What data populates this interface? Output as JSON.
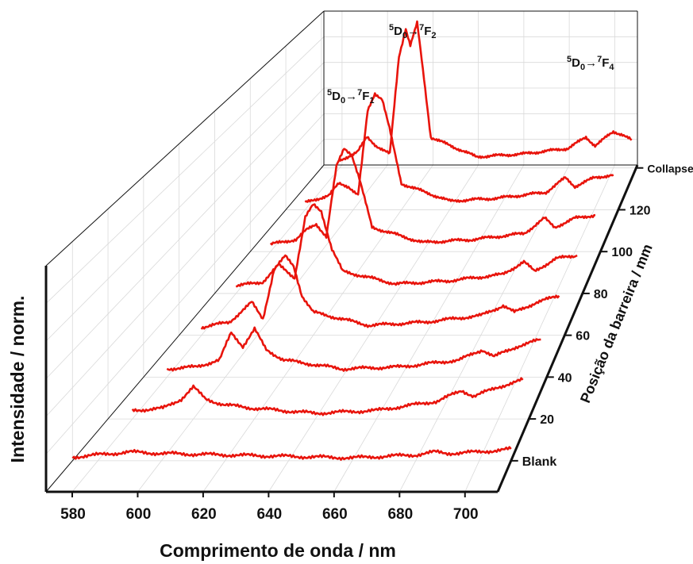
{
  "chart_data": {
    "type": "line",
    "subtype": "3d-waterfall",
    "xlabel": "Comprimento de onda / nm",
    "ylabel": "Intensidade / norm.",
    "zlabel": "Posição da barreira / mm",
    "xlim": [
      572,
      710
    ],
    "x_ticks": [
      "580",
      "600",
      "620",
      "640",
      "660",
      "680",
      "700"
    ],
    "z_ticks": [
      "Blank",
      "20",
      "40",
      "60",
      "80",
      "100",
      "120",
      "Collapse"
    ],
    "grid": true,
    "series_color": "#e8140c",
    "annotations": [
      {
        "sup1": "5",
        "main1": "D",
        "sub1": "0",
        "arrow": "→",
        "sup2": "7",
        "main2": "F",
        "sub2": "1",
        "x": 592,
        "series": 7
      },
      {
        "sup1": "5",
        "main1": "D",
        "sub1": "0",
        "arrow": "→",
        "sup2": "7",
        "main2": "F",
        "sub2": "2",
        "x": 614,
        "series": 7
      },
      {
        "sup1": "5",
        "main1": "D",
        "sub1": "0",
        "arrow": "→",
        "sup2": "7",
        "main2": "F",
        "sub2": "4",
        "x": 700,
        "series": 7
      }
    ],
    "series": [
      {
        "position": "Blank",
        "points": [
          [
            572,
            0.05
          ],
          [
            590,
            0.12
          ],
          [
            600,
            0.1
          ],
          [
            620,
            0.08
          ],
          [
            640,
            0.06
          ],
          [
            660,
            0.04
          ],
          [
            680,
            0.08
          ],
          [
            686,
            0.12
          ],
          [
            690,
            0.1
          ],
          [
            700,
            0.12
          ],
          [
            710,
            0.16
          ]
        ]
      },
      {
        "position": "20",
        "points": [
          [
            580,
            0.12
          ],
          [
            590,
            0.15
          ],
          [
            596,
            0.28
          ],
          [
            600,
            0.45
          ],
          [
            604,
            0.28
          ],
          [
            610,
            0.2
          ],
          [
            620,
            0.15
          ],
          [
            640,
            0.08
          ],
          [
            660,
            0.12
          ],
          [
            680,
            0.25
          ],
          [
            688,
            0.4
          ],
          [
            692,
            0.32
          ],
          [
            700,
            0.45
          ],
          [
            708,
            0.55
          ]
        ]
      },
      {
        "position": "40",
        "points": [
          [
            580,
            0.12
          ],
          [
            590,
            0.15
          ],
          [
            598,
            0.25
          ],
          [
            602,
            0.65
          ],
          [
            606,
            0.45
          ],
          [
            610,
            0.7
          ],
          [
            614,
            0.4
          ],
          [
            620,
            0.25
          ],
          [
            640,
            0.12
          ],
          [
            660,
            0.15
          ],
          [
            680,
            0.25
          ],
          [
            688,
            0.4
          ],
          [
            692,
            0.3
          ],
          [
            700,
            0.45
          ],
          [
            708,
            0.55
          ]
        ]
      },
      {
        "position": "60",
        "points": [
          [
            580,
            0.12
          ],
          [
            590,
            0.2
          ],
          [
            594,
            0.35
          ],
          [
            598,
            0.5
          ],
          [
            602,
            0.25
          ],
          [
            606,
            1.0
          ],
          [
            610,
            1.2
          ],
          [
            613,
            1.05
          ],
          [
            616,
            0.6
          ],
          [
            620,
            0.35
          ],
          [
            640,
            0.15
          ],
          [
            660,
            0.2
          ],
          [
            680,
            0.3
          ],
          [
            688,
            0.45
          ],
          [
            692,
            0.35
          ],
          [
            700,
            0.5
          ],
          [
            708,
            0.6
          ]
        ]
      },
      {
        "position": "80",
        "points": [
          [
            580,
            0.12
          ],
          [
            590,
            0.18
          ],
          [
            596,
            0.45
          ],
          [
            602,
            0.25
          ],
          [
            606,
            1.2
          ],
          [
            609,
            1.4
          ],
          [
            612,
            1.3
          ],
          [
            616,
            0.7
          ],
          [
            620,
            0.35
          ],
          [
            640,
            0.15
          ],
          [
            660,
            0.2
          ],
          [
            680,
            0.3
          ],
          [
            688,
            0.5
          ],
          [
            692,
            0.35
          ],
          [
            700,
            0.55
          ],
          [
            708,
            0.6
          ]
        ]
      },
      {
        "position": "100",
        "points": [
          [
            580,
            0.12
          ],
          [
            590,
            0.2
          ],
          [
            594,
            0.35
          ],
          [
            598,
            0.45
          ],
          [
            602,
            0.25
          ],
          [
            606,
            1.4
          ],
          [
            609,
            1.7
          ],
          [
            612,
            1.6
          ],
          [
            615,
            1.2
          ],
          [
            620,
            0.4
          ],
          [
            640,
            0.15
          ],
          [
            660,
            0.2
          ],
          [
            680,
            0.3
          ],
          [
            688,
            0.55
          ],
          [
            692,
            0.4
          ],
          [
            700,
            0.55
          ],
          [
            708,
            0.6
          ]
        ]
      },
      {
        "position": "120",
        "points": [
          [
            580,
            0.12
          ],
          [
            590,
            0.25
          ],
          [
            594,
            0.45
          ],
          [
            598,
            0.4
          ],
          [
            602,
            0.25
          ],
          [
            606,
            1.7
          ],
          [
            609,
            2.0
          ],
          [
            612,
            1.9
          ],
          [
            615,
            1.4
          ],
          [
            620,
            0.45
          ],
          [
            640,
            0.15
          ],
          [
            660,
            0.2
          ],
          [
            680,
            0.3
          ],
          [
            688,
            0.55
          ],
          [
            692,
            0.4
          ],
          [
            700,
            0.55
          ],
          [
            708,
            0.6
          ]
        ]
      },
      {
        "position": "Collapse",
        "points": [
          [
            580,
            0.12
          ],
          [
            588,
            0.3
          ],
          [
            592,
            0.55
          ],
          [
            596,
            0.4
          ],
          [
            602,
            0.25
          ],
          [
            606,
            2.0
          ],
          [
            609,
            2.5
          ],
          [
            611,
            2.2
          ],
          [
            614,
            2.6
          ],
          [
            617,
            1.6
          ],
          [
            620,
            0.55
          ],
          [
            640,
            0.2
          ],
          [
            660,
            0.25
          ],
          [
            680,
            0.35
          ],
          [
            688,
            0.55
          ],
          [
            692,
            0.4
          ],
          [
            700,
            0.65
          ],
          [
            704,
            0.6
          ],
          [
            708,
            0.5
          ]
        ]
      }
    ]
  }
}
